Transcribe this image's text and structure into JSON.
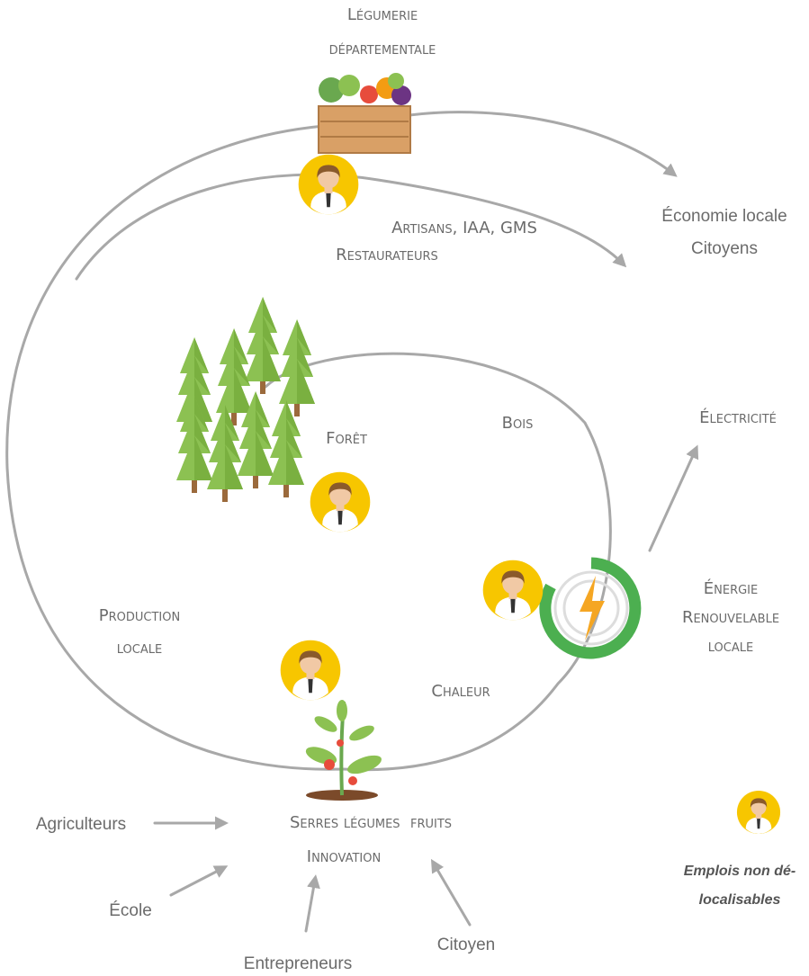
{
  "nodes": {
    "legumerie": {
      "lines": [
        "Légumerie",
        "départementale"
      ]
    },
    "artisans": {
      "lines": [
        "Artisans, IAA, GMS",
        "Restaurateurs"
      ]
    },
    "economie": {
      "lines": [
        "Économie locale",
        "Citoyens"
      ]
    },
    "foret": {
      "label": "Forêt"
    },
    "bois": {
      "label": "Bois"
    },
    "electricite": {
      "label": "Électricité"
    },
    "energie": {
      "lines": [
        "Énergie",
        "Renouvelable",
        "locale"
      ]
    },
    "production": {
      "lines": [
        "Production",
        "locale"
      ]
    },
    "chaleur": {
      "label": "Chaleur"
    },
    "serres": {
      "lines": [
        "Serres légumes  fruits",
        "Innovation"
      ]
    },
    "agriculteurs": {
      "label": "Agriculteurs"
    },
    "ecole": {
      "label": "École"
    },
    "entrepreneurs": {
      "label": "Entrepreneurs"
    },
    "citoyen": {
      "label": "Citoyen"
    }
  },
  "legend": {
    "lines": [
      "Emplois non dé-",
      "localisables"
    ]
  }
}
